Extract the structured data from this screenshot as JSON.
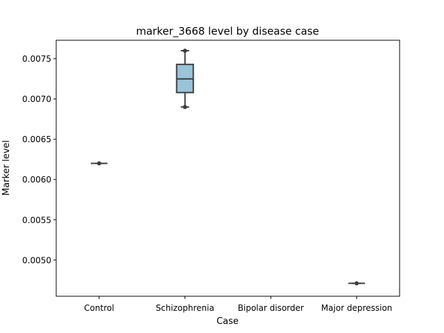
{
  "chart_data": {
    "type": "box",
    "title": "marker_3668 level by disease case",
    "xlabel": "Case",
    "ylabel": "Marker level",
    "categories": [
      "Control",
      "Schizophrenia",
      "Bipolar disorder",
      "Major depression"
    ],
    "ylim": [
      0.00455,
      0.00773
    ],
    "yticks": [
      0.005,
      0.0055,
      0.006,
      0.0065,
      0.007,
      0.0075
    ],
    "ytick_labels": [
      "0.0050",
      "0.0055",
      "0.0060",
      "0.0065",
      "0.0070",
      "0.0075"
    ],
    "grid": false,
    "boxes": [
      {
        "category": "Control",
        "min": 0.0062,
        "q1": 0.0062,
        "median": 0.0062,
        "q3": 0.0062,
        "max": 0.0062,
        "points": [
          0.0062
        ]
      },
      {
        "category": "Schizophrenia",
        "min": 0.0069,
        "q1": 0.00708,
        "median": 0.00725,
        "q3": 0.00743,
        "max": 0.0076,
        "points": [
          0.0069,
          0.0076
        ]
      },
      {
        "category": "Bipolar disorder",
        "min": null,
        "q1": null,
        "median": null,
        "q3": null,
        "max": null,
        "points": []
      },
      {
        "category": "Major depression",
        "min": 0.00471,
        "q1": 0.00471,
        "median": 0.00471,
        "q3": 0.00471,
        "max": 0.00471,
        "points": [
          0.00471
        ]
      }
    ],
    "colors": {
      "box_fill": "#9ac4d8",
      "line": "#3d3d3d",
      "axis": "#000000"
    }
  }
}
